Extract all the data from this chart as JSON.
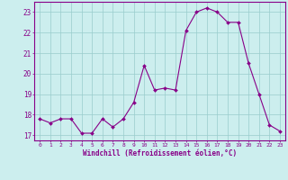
{
  "x": [
    0,
    1,
    2,
    3,
    4,
    5,
    6,
    7,
    8,
    9,
    10,
    11,
    12,
    13,
    14,
    15,
    16,
    17,
    18,
    19,
    20,
    21,
    22,
    23
  ],
  "y": [
    17.8,
    17.6,
    17.8,
    17.8,
    17.1,
    17.1,
    17.8,
    17.4,
    17.8,
    18.6,
    20.4,
    19.2,
    19.3,
    19.2,
    22.1,
    23.0,
    23.2,
    23.0,
    22.5,
    22.5,
    20.5,
    19.0,
    17.5,
    17.2
  ],
  "line_color": "#880088",
  "marker_color": "#880088",
  "bg_color": "#cceeee",
  "grid_color": "#99cccc",
  "xlabel": "Windchill (Refroidissement éolien,°C)",
  "xlabel_color": "#880088",
  "tick_color": "#880088",
  "ylim": [
    16.75,
    23.5
  ],
  "yticks": [
    17,
    18,
    19,
    20,
    21,
    22,
    23
  ],
  "xticks": [
    0,
    1,
    2,
    3,
    4,
    5,
    6,
    7,
    8,
    9,
    10,
    11,
    12,
    13,
    14,
    15,
    16,
    17,
    18,
    19,
    20,
    21,
    22,
    23
  ],
  "spine_color": "#880088",
  "title_bg": "#880088"
}
